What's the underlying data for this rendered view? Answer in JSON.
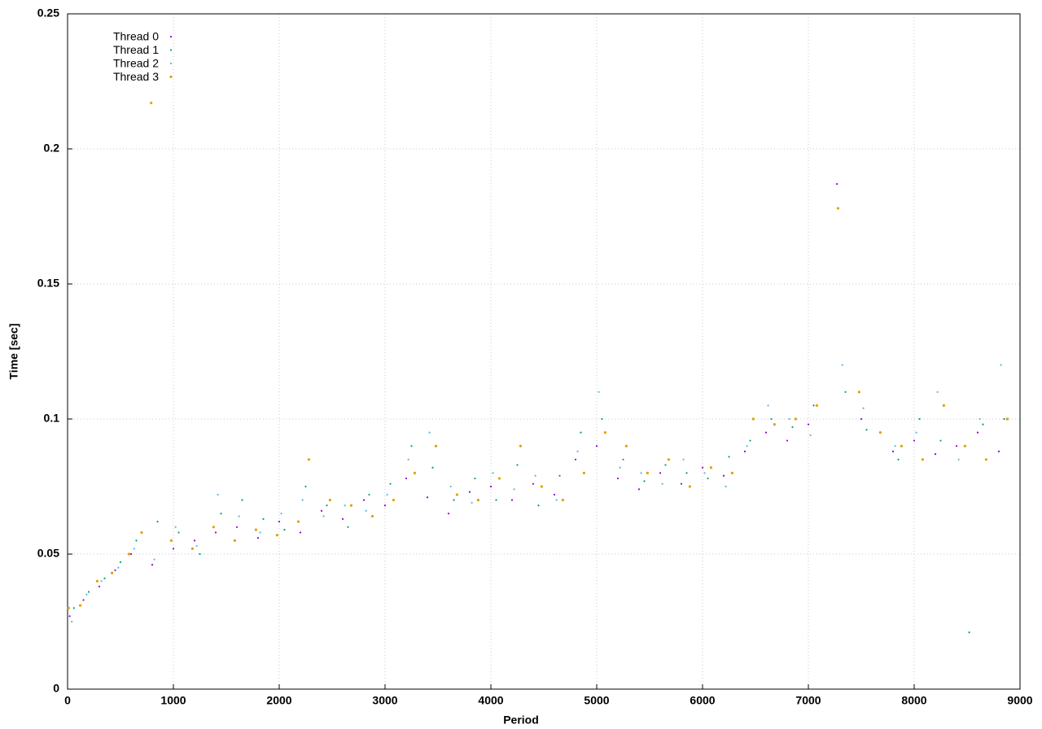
{
  "chart_data": {
    "type": "scatter",
    "xlabel": "Period",
    "ylabel": "Time [sec]",
    "xlim": [
      0,
      9000
    ],
    "ylim": [
      0,
      0.25
    ],
    "xticks": [
      0,
      1000,
      2000,
      3000,
      4000,
      5000,
      6000,
      7000,
      8000,
      9000
    ],
    "yticks": [
      0,
      0.05,
      0.1,
      0.15,
      0.2,
      0.25
    ],
    "grid": true,
    "legend": "top-left",
    "series": [
      {
        "name": "Thread 0",
        "color": "#9400d3",
        "x": [
          20,
          150,
          300,
          450,
          600,
          800,
          1000,
          1200,
          1400,
          1600,
          1800,
          2000,
          2200,
          2400,
          2600,
          2800,
          3000,
          3200,
          3400,
          3600,
          3800,
          4000,
          4200,
          4400,
          4600,
          4800,
          5000,
          5200,
          5400,
          5600,
          5800,
          6000,
          6200,
          6400,
          6600,
          6800,
          7000,
          7270,
          7500,
          7800,
          8000,
          8200,
          8400,
          8600,
          8800
        ],
        "values": [
          0.027,
          0.033,
          0.038,
          0.044,
          0.05,
          0.046,
          0.052,
          0.055,
          0.058,
          0.06,
          0.056,
          0.062,
          0.058,
          0.066,
          0.063,
          0.07,
          0.068,
          0.078,
          0.071,
          0.065,
          0.073,
          0.075,
          0.07,
          0.076,
          0.072,
          0.085,
          0.09,
          0.078,
          0.074,
          0.08,
          0.076,
          0.082,
          0.079,
          0.088,
          0.095,
          0.092,
          0.098,
          0.187,
          0.1,
          0.088,
          0.092,
          0.087,
          0.09,
          0.095,
          0.088
        ]
      },
      {
        "name": "Thread 1",
        "color": "#009e73",
        "x": [
          60,
          200,
          350,
          500,
          650,
          850,
          1050,
          1250,
          1450,
          1650,
          1850,
          2050,
          2250,
          2450,
          2650,
          2850,
          3050,
          3250,
          3450,
          3650,
          3850,
          4050,
          4250,
          4450,
          4650,
          4850,
          5050,
          5250,
          5450,
          5650,
          5850,
          6050,
          6250,
          6450,
          6650,
          6850,
          7050,
          7350,
          7550,
          7850,
          8050,
          8250,
          8520,
          8650,
          8850
        ],
        "values": [
          0.03,
          0.036,
          0.041,
          0.047,
          0.055,
          0.062,
          0.058,
          0.05,
          0.065,
          0.07,
          0.063,
          0.059,
          0.075,
          0.068,
          0.06,
          0.072,
          0.076,
          0.09,
          0.082,
          0.07,
          0.078,
          0.07,
          0.083,
          0.068,
          0.079,
          0.095,
          0.1,
          0.085,
          0.077,
          0.083,
          0.08,
          0.078,
          0.086,
          0.092,
          0.1,
          0.097,
          0.105,
          0.11,
          0.096,
          0.085,
          0.1,
          0.092,
          0.021,
          0.098,
          0.1
        ]
      },
      {
        "name": "Thread 2",
        "color": "#56b4e9",
        "x": [
          40,
          180,
          320,
          480,
          630,
          820,
          1020,
          1220,
          1420,
          1620,
          1820,
          2020,
          2220,
          2420,
          2620,
          2820,
          3020,
          3220,
          3420,
          3620,
          3820,
          4020,
          4220,
          4420,
          4620,
          4820,
          5020,
          5220,
          5420,
          5620,
          5820,
          6020,
          6220,
          6420,
          6620,
          6820,
          7020,
          7320,
          7520,
          7820,
          8020,
          8220,
          8420,
          8620,
          8820
        ],
        "values": [
          0.025,
          0.035,
          0.04,
          0.045,
          0.052,
          0.048,
          0.06,
          0.053,
          0.072,
          0.064,
          0.058,
          0.065,
          0.07,
          0.064,
          0.068,
          0.066,
          0.072,
          0.085,
          0.095,
          0.075,
          0.069,
          0.08,
          0.074,
          0.079,
          0.07,
          0.088,
          0.11,
          0.082,
          0.08,
          0.076,
          0.085,
          0.08,
          0.075,
          0.09,
          0.105,
          0.1,
          0.094,
          0.12,
          0.104,
          0.09,
          0.095,
          0.11,
          0.085,
          0.1,
          0.12
        ]
      },
      {
        "name": "Thread 3",
        "color": "#e69f00",
        "x": [
          10,
          120,
          280,
          420,
          580,
          700,
          790,
          980,
          1180,
          1380,
          1580,
          1780,
          1980,
          2180,
          2280,
          2480,
          2680,
          2880,
          3080,
          3280,
          3480,
          3680,
          3880,
          4080,
          4280,
          4480,
          4680,
          4880,
          5080,
          5280,
          5480,
          5680,
          5880,
          6080,
          6280,
          6480,
          6680,
          6880,
          7080,
          7280,
          7480,
          7680,
          7880,
          8080,
          8280,
          8480,
          8680,
          8880
        ],
        "values": [
          0.03,
          0.031,
          0.04,
          0.043,
          0.05,
          0.058,
          0.217,
          0.055,
          0.052,
          0.06,
          0.055,
          0.059,
          0.057,
          0.062,
          0.085,
          0.07,
          0.068,
          0.064,
          0.07,
          0.08,
          0.09,
          0.072,
          0.07,
          0.078,
          0.09,
          0.075,
          0.07,
          0.08,
          0.095,
          0.09,
          0.08,
          0.085,
          0.075,
          0.082,
          0.08,
          0.1,
          0.098,
          0.1,
          0.105,
          0.178,
          0.11,
          0.095,
          0.09,
          0.085,
          0.105,
          0.09,
          0.085,
          0.1
        ]
      }
    ]
  }
}
